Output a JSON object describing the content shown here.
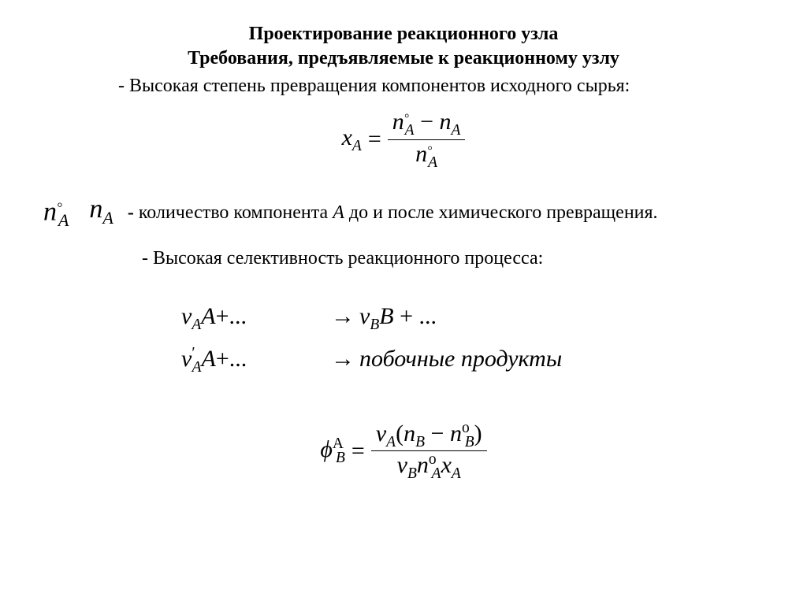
{
  "heading": {
    "line1": "Проектирование реакционного узла",
    "line2": "Требования, предъявляемые к реакционному узлу"
  },
  "bullet1": "- Высокая степень превращения компонентов исходного сырья:",
  "eq1": {
    "lhs": "x",
    "lhs_sub": "A",
    "num_a": "n",
    "num_a_sub": "A",
    "num_a_sup": "◦",
    "minus": "−",
    "num_b": "n",
    "num_b_sub": "A",
    "den": "n",
    "den_sub": "A",
    "den_sup": "◦",
    "equals": "="
  },
  "def": {
    "sym1": "n",
    "sym1_sub": "A",
    "sym1_sup": "◦",
    "sym2": "n",
    "sym2_sub": "A",
    "dash": "- ",
    "text_before": "количество компонента ",
    "comp": "A",
    "text_after": " до и после химического превращения."
  },
  "bullet2": "- Высокая селективность реакционного процесса:",
  "rxn": {
    "nu": "ν",
    "r1_lsub": "A",
    "r1_lvar": "A",
    "r1_ltail": "+...",
    "arrow": "→",
    "r1_rsub": "B",
    "r1_rvar": "B",
    "r1_rtail": " + ...",
    "r2_lsub": "A",
    "r2_lsup": "′",
    "r2_lvar": "A",
    "r2_ltail": "+...",
    "r2_rhs": "побочные продукты"
  },
  "eq2": {
    "phi": "ϕ",
    "phi_sub": "B",
    "phi_sup": "A",
    "equals": "=",
    "nu": "ν",
    "num_nu_sub": "A",
    "lpar": "(",
    "num_n1": "n",
    "num_n1_sub": "B",
    "minus": "−",
    "num_n2": "n",
    "num_n2_sub": "B",
    "num_n2_sup": "o",
    "rpar": ")",
    "den_nu_sub": "B",
    "den_n1": "n",
    "den_n1_sub": "A",
    "den_n1_sup": "o",
    "den_x": "x",
    "den_x_sub": "A"
  }
}
